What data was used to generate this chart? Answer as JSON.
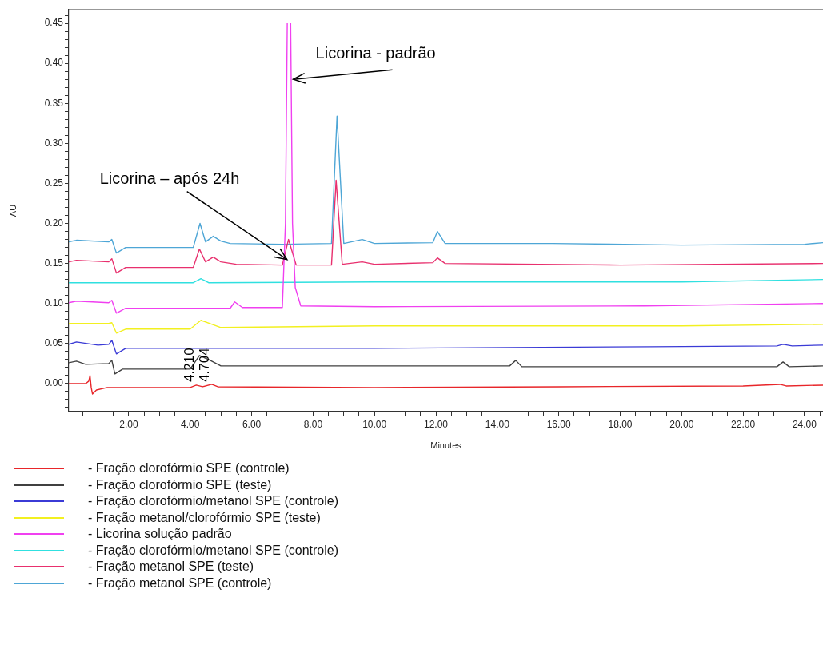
{
  "chart_data": {
    "type": "line",
    "xlabel": "Minutes",
    "ylabel": "AU",
    "grid": false,
    "legend": "bottom",
    "marker": "none",
    "line_style": "solid",
    "xlim": [
      0.05,
      24.6
    ],
    "ylim": [
      -0.035,
      0.467
    ],
    "xticks": [
      {
        "value": 0.5,
        "label": null
      },
      {
        "value": 1,
        "label": null
      },
      {
        "value": 1.5,
        "label": null
      },
      {
        "value": 2,
        "label": "2.00"
      },
      {
        "value": 2.5,
        "label": null
      },
      {
        "value": 3,
        "label": null
      },
      {
        "value": 3.5,
        "label": null
      },
      {
        "value": 4,
        "label": "4.00"
      },
      {
        "value": 4.5,
        "label": null
      },
      {
        "value": 5,
        "label": null
      },
      {
        "value": 5.5,
        "label": null
      },
      {
        "value": 6,
        "label": "6.00"
      },
      {
        "value": 6.5,
        "label": null
      },
      {
        "value": 7,
        "label": null
      },
      {
        "value": 7.5,
        "label": null
      },
      {
        "value": 8,
        "label": "8.00"
      },
      {
        "value": 8.5,
        "label": null
      },
      {
        "value": 9,
        "label": null
      },
      {
        "value": 9.5,
        "label": null
      },
      {
        "value": 10,
        "label": "10.00"
      },
      {
        "value": 10.5,
        "label": null
      },
      {
        "value": 11,
        "label": null
      },
      {
        "value": 11.5,
        "label": null
      },
      {
        "value": 12,
        "label": "12.00"
      },
      {
        "value": 12.5,
        "label": null
      },
      {
        "value": 13,
        "label": null
      },
      {
        "value": 13.5,
        "label": null
      },
      {
        "value": 14,
        "label": "14.00"
      },
      {
        "value": 14.5,
        "label": null
      },
      {
        "value": 15,
        "label": null
      },
      {
        "value": 15.5,
        "label": null
      },
      {
        "value": 16,
        "label": "16.00"
      },
      {
        "value": 16.5,
        "label": null
      },
      {
        "value": 17,
        "label": null
      },
      {
        "value": 17.5,
        "label": null
      },
      {
        "value": 18,
        "label": "18.00"
      },
      {
        "value": 18.5,
        "label": null
      },
      {
        "value": 19,
        "label": null
      },
      {
        "value": 19.5,
        "label": null
      },
      {
        "value": 20,
        "label": "20.00"
      },
      {
        "value": 20.5,
        "label": null
      },
      {
        "value": 21,
        "label": null
      },
      {
        "value": 21.5,
        "label": null
      },
      {
        "value": 22,
        "label": "22.00"
      },
      {
        "value": 22.5,
        "label": null
      },
      {
        "value": 23,
        "label": null
      },
      {
        "value": 23.5,
        "label": null
      },
      {
        "value": 24,
        "label": "24.00"
      },
      {
        "value": 24.5,
        "label": null
      }
    ],
    "yticks": [
      {
        "value": -0.03,
        "label": null
      },
      {
        "value": -0.02,
        "label": null
      },
      {
        "value": -0.01,
        "label": null
      },
      {
        "value": 0,
        "label": "0.00"
      },
      {
        "value": 0.01,
        "label": null
      },
      {
        "value": 0.02,
        "label": null
      },
      {
        "value": 0.03,
        "label": null
      },
      {
        "value": 0.04,
        "label": null
      },
      {
        "value": 0.05,
        "label": "0.05"
      },
      {
        "value": 0.06,
        "label": null
      },
      {
        "value": 0.07,
        "label": null
      },
      {
        "value": 0.08,
        "label": null
      },
      {
        "value": 0.09,
        "label": null
      },
      {
        "value": 0.1,
        "label": "0.10"
      },
      {
        "value": 0.11,
        "label": null
      },
      {
        "value": 0.12,
        "label": null
      },
      {
        "value": 0.13,
        "label": null
      },
      {
        "value": 0.14,
        "label": null
      },
      {
        "value": 0.15,
        "label": "0.15"
      },
      {
        "value": 0.16,
        "label": null
      },
      {
        "value": 0.17,
        "label": null
      },
      {
        "value": 0.18,
        "label": null
      },
      {
        "value": 0.19,
        "label": null
      },
      {
        "value": 0.2,
        "label": "0.20"
      },
      {
        "value": 0.21,
        "label": null
      },
      {
        "value": 0.22,
        "label": null
      },
      {
        "value": 0.23,
        "label": null
      },
      {
        "value": 0.24,
        "label": null
      },
      {
        "value": 0.25,
        "label": "0.25"
      },
      {
        "value": 0.26,
        "label": null
      },
      {
        "value": 0.27,
        "label": null
      },
      {
        "value": 0.28,
        "label": null
      },
      {
        "value": 0.29,
        "label": null
      },
      {
        "value": 0.3,
        "label": "0.30"
      },
      {
        "value": 0.31,
        "label": null
      },
      {
        "value": 0.32,
        "label": null
      },
      {
        "value": 0.33,
        "label": null
      },
      {
        "value": 0.34,
        "label": null
      },
      {
        "value": 0.35,
        "label": "0.35"
      },
      {
        "value": 0.36,
        "label": null
      },
      {
        "value": 0.37,
        "label": null
      },
      {
        "value": 0.38,
        "label": null
      },
      {
        "value": 0.39,
        "label": null
      },
      {
        "value": 0.4,
        "label": "0.40"
      },
      {
        "value": 0.41,
        "label": null
      },
      {
        "value": 0.42,
        "label": null
      },
      {
        "value": 0.43,
        "label": null
      },
      {
        "value": 0.44,
        "label": null
      },
      {
        "value": 0.45,
        "label": "0.45"
      },
      {
        "value": 0.46,
        "label": null
      }
    ],
    "annotations": [
      {
        "text": "Licorina - padrão",
        "x": 7.25,
        "y": 0.38
      },
      {
        "text": "Licorina – após 24h",
        "x": 7.15,
        "y": 0.155
      },
      {
        "text": "4.210",
        "x": 4.21,
        "y": 0
      },
      {
        "text": "4.704",
        "x": 4.704,
        "y": 0
      }
    ],
    "series": [
      {
        "name": "- Fração clorofórmio SPE (controle)",
        "color": "#e8262a",
        "x": [
          0.05,
          0.6,
          0.7,
          0.74,
          0.78,
          0.82,
          0.95,
          1.3,
          4.0,
          4.2,
          4.4,
          4.7,
          4.9,
          10,
          16,
          22,
          23.2,
          23.4,
          24.6
        ],
        "values": [
          0,
          0,
          0.003,
          0.01,
          -0.005,
          -0.013,
          -0.008,
          -0.005,
          -0.005,
          -0.002,
          -0.004,
          -0.001,
          -0.004,
          -0.005,
          -0.004,
          -0.003,
          -0.001,
          -0.003,
          -0.002
        ]
      },
      {
        "name": "- Fração clorofórmio SPE (teste)",
        "color": "#404040",
        "x": [
          0.05,
          0.3,
          0.6,
          1.35,
          1.45,
          1.55,
          1.8,
          4.0,
          4.3,
          4.6,
          5.0,
          10,
          14.4,
          14.6,
          14.8,
          18,
          23.1,
          23.3,
          23.5,
          24.6
        ],
        "values": [
          0.026,
          0.028,
          0.024,
          0.025,
          0.029,
          0.012,
          0.018,
          0.018,
          0.035,
          0.03,
          0.022,
          0.022,
          0.022,
          0.029,
          0.021,
          0.021,
          0.021,
          0.027,
          0.021,
          0.022
        ]
      },
      {
        "name": "- Fração clorofórmio/metanol SPE (controle)",
        "color": "#3b3bd6",
        "x": [
          0.05,
          0.3,
          1.0,
          1.35,
          1.45,
          1.6,
          1.9,
          10,
          19,
          23.1,
          23.3,
          23.6,
          24.6
        ],
        "values": [
          0.049,
          0.052,
          0.048,
          0.049,
          0.054,
          0.037,
          0.044,
          0.044,
          0.046,
          0.047,
          0.049,
          0.047,
          0.048
        ]
      },
      {
        "name": "- Fração metanol/clorofórmio SPE (teste)",
        "color": "#f2f020",
        "x": [
          0.05,
          1.35,
          1.45,
          1.6,
          1.9,
          4.0,
          4.35,
          5.0,
          10,
          20,
          24.6
        ],
        "values": [
          0.075,
          0.075,
          0.076,
          0.063,
          0.068,
          0.068,
          0.079,
          0.07,
          0.072,
          0.072,
          0.074
        ]
      },
      {
        "name": "- Licorina solução padrão",
        "color": "#f040f0",
        "x": [
          0.05,
          0.3,
          1.35,
          1.45,
          1.6,
          1.9,
          5.3,
          5.45,
          5.7,
          7.0,
          7.1,
          7.16,
          7.21,
          7.27,
          7.33,
          7.42,
          7.6,
          10,
          18.8,
          24.6
        ],
        "values": [
          0.101,
          0.103,
          0.101,
          0.104,
          0.088,
          0.094,
          0.094,
          0.102,
          0.095,
          0.095,
          0.2,
          0.45,
          null,
          0.45,
          0.2,
          0.12,
          0.097,
          0.096,
          0.097,
          0.1
        ]
      },
      {
        "name": "- Fração clorofórmio/metanol SPE (controle)",
        "color": "#30e0e0",
        "x": [
          0.05,
          4.1,
          4.35,
          4.6,
          10,
          20,
          24.6
        ],
        "values": [
          0.126,
          0.126,
          0.131,
          0.126,
          0.127,
          0.127,
          0.13
        ]
      },
      {
        "name": "- Fração metanol SPE (teste)",
        "color": "#e8306e",
        "x": [
          0.05,
          0.3,
          1.35,
          1.45,
          1.6,
          1.9,
          4.1,
          4.3,
          4.5,
          4.75,
          5.0,
          5.5,
          7.0,
          7.2,
          7.45,
          8.6,
          8.75,
          8.95,
          9.6,
          10,
          11.9,
          12.05,
          12.3,
          18,
          24.6
        ],
        "values": [
          0.152,
          0.154,
          0.152,
          0.156,
          0.138,
          0.145,
          0.145,
          0.168,
          0.152,
          0.158,
          0.152,
          0.149,
          0.148,
          0.18,
          0.148,
          0.148,
          0.254,
          0.149,
          0.152,
          0.149,
          0.151,
          0.157,
          0.15,
          0.148,
          0.15
        ]
      },
      {
        "name": "- Fração metanol SPE (controle)",
        "color": "#4ea6d6",
        "x": [
          0.05,
          0.3,
          1.35,
          1.45,
          1.6,
          1.9,
          4.1,
          4.32,
          4.5,
          4.75,
          5.0,
          5.3,
          7.0,
          8.6,
          8.78,
          9.0,
          9.6,
          10,
          11.9,
          12.05,
          12.3,
          15.8,
          20,
          24,
          24.6
        ],
        "values": [
          0.177,
          0.179,
          0.177,
          0.18,
          0.163,
          0.17,
          0.17,
          0.2,
          0.177,
          0.184,
          0.178,
          0.175,
          0.174,
          0.175,
          0.334,
          0.175,
          0.18,
          0.175,
          0.176,
          0.19,
          0.175,
          0.175,
          0.173,
          0.174,
          0.176
        ]
      }
    ]
  }
}
